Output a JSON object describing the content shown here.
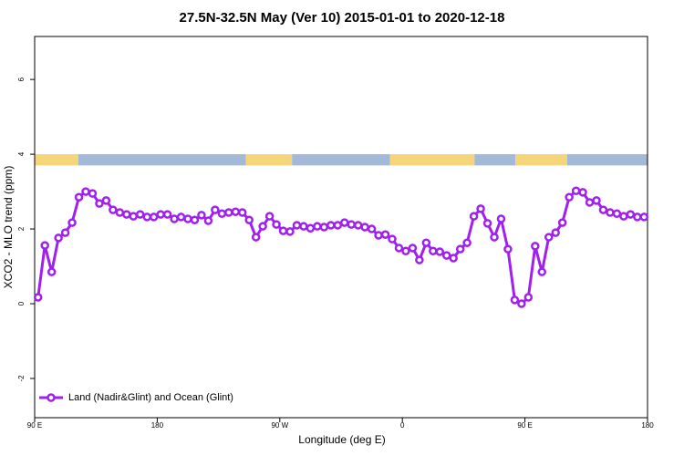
{
  "chart_data": {
    "type": "line",
    "title": "27.5N-32.5N May (Ver 10)   2015-01-01 to 2020-12-18",
    "xlabel": "Longitude (deg E)",
    "ylabel": "XCO2 - MLO trend (ppm)",
    "xlim": [
      90,
      540
    ],
    "xticks": [
      {
        "value": 90,
        "label": "90 E"
      },
      {
        "value": 180,
        "label": "180"
      },
      {
        "value": 270,
        "label": "90 W"
      },
      {
        "value": 360,
        "label": "0"
      },
      {
        "value": 450,
        "label": "90 E"
      },
      {
        "value": 540,
        "label": "180"
      }
    ],
    "ylim": [
      -3.05,
      7.15
    ],
    "yticks": [
      -2,
      0,
      2,
      4,
      6
    ],
    "legend": "bottom-left",
    "surface_bands": {
      "ylim": [
        3.7,
        4.0
      ],
      "segments": [
        {
          "x": [
            90,
            122
          ],
          "color": "#f5d57a"
        },
        {
          "x": [
            122,
            245
          ],
          "color": "#a4b8d8"
        },
        {
          "x": [
            245,
            279
          ],
          "color": "#f5d57a"
        },
        {
          "x": [
            279,
            351
          ],
          "color": "#a4b8d8"
        },
        {
          "x": [
            351,
            413
          ],
          "color": "#f5d57a"
        },
        {
          "x": [
            413,
            443
          ],
          "color": "#a4b8d8"
        },
        {
          "x": [
            443,
            481
          ],
          "color": "#f5d57a"
        },
        {
          "x": [
            481,
            540
          ],
          "color": "#a4b8d8"
        }
      ]
    },
    "x": [
      92.5,
      97.5,
      102.5,
      107.5,
      112.5,
      117.5,
      122.5,
      127.5,
      132.5,
      137.5,
      142.5,
      147.5,
      152.5,
      157.5,
      162.5,
      167.5,
      172.5,
      177.5,
      182.5,
      187.5,
      192.5,
      197.5,
      202.5,
      207.5,
      212.5,
      217.5,
      222.5,
      227.5,
      232.5,
      237.5,
      242.5,
      247.5,
      252.5,
      257.5,
      262.5,
      267.5,
      272.5,
      277.5,
      282.5,
      287.5,
      292.5,
      297.5,
      302.5,
      307.5,
      312.5,
      317.5,
      322.5,
      327.5,
      332.5,
      337.5,
      342.5,
      347.5,
      352.5,
      357.5,
      362.5,
      367.5,
      372.5,
      377.5,
      382.5,
      387.5,
      392.5,
      397.5,
      402.5,
      407.5,
      412.5,
      417.5,
      422.5,
      427.5,
      432.5,
      437.5,
      442.5,
      447.5,
      452.5,
      457.5,
      462.5,
      467.5,
      472.5,
      477.5,
      482.5,
      487.5,
      492.5,
      497.5,
      502.5,
      507.5,
      512.5,
      517.5,
      522.5,
      527.5,
      532.5,
      537.5
    ],
    "series": [
      {
        "name": "Land (Nadir&Glint) and Ocean (Glint)",
        "color": "#a020f0",
        "values": [
          0.17,
          1.56,
          0.85,
          1.76,
          1.9,
          2.17,
          2.85,
          3.0,
          2.95,
          2.68,
          2.76,
          2.51,
          2.44,
          2.39,
          2.34,
          2.39,
          2.32,
          2.32,
          2.39,
          2.39,
          2.27,
          2.32,
          2.27,
          2.24,
          2.37,
          2.22,
          2.51,
          2.41,
          2.44,
          2.46,
          2.44,
          2.24,
          1.78,
          2.07,
          2.34,
          2.12,
          1.95,
          1.93,
          2.1,
          2.07,
          2.02,
          2.07,
          2.05,
          2.1,
          2.1,
          2.17,
          2.12,
          2.1,
          2.05,
          2.0,
          1.83,
          1.85,
          1.73,
          1.49,
          1.41,
          1.49,
          1.17,
          1.63,
          1.41,
          1.39,
          1.29,
          1.22,
          1.46,
          1.63,
          2.34,
          2.54,
          2.15,
          1.78,
          2.27,
          1.46,
          0.1,
          0.0,
          0.17,
          1.54,
          0.85,
          1.78,
          1.9,
          2.17,
          2.85,
          3.02,
          2.98,
          2.71,
          2.76,
          2.51,
          2.44,
          2.41,
          2.34,
          2.39,
          2.32,
          2.32
        ]
      }
    ]
  }
}
